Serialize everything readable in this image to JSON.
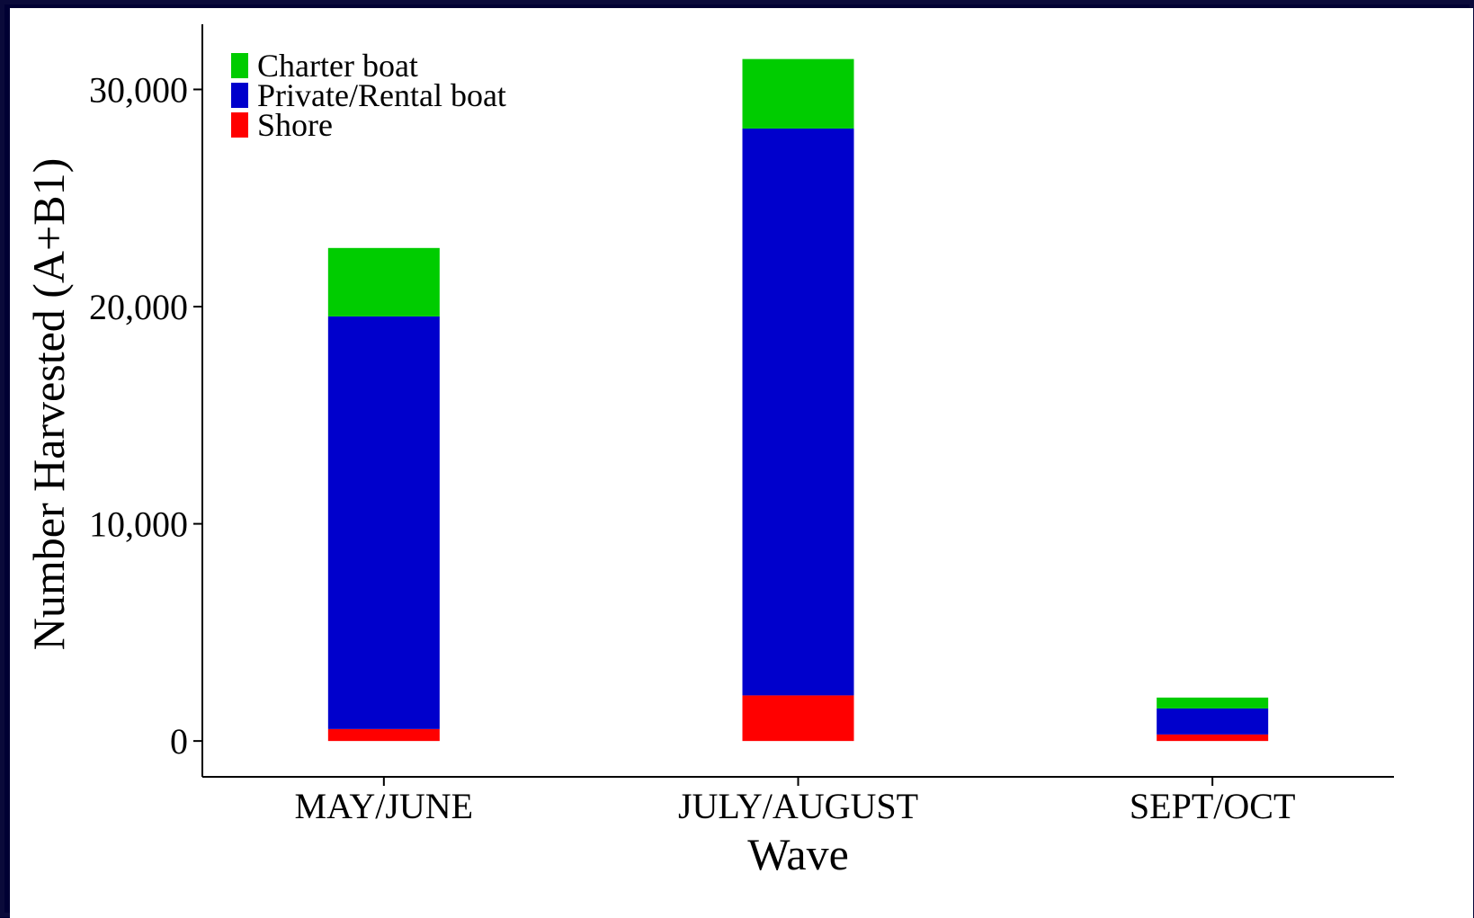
{
  "chart_data": {
    "type": "bar",
    "stacked": true,
    "categories": [
      "MAY/JUNE",
      "JULY/AUGUST",
      "SEPT/OCT"
    ],
    "series": [
      {
        "name": "Shore",
        "color": "#ff0000",
        "values": [
          550,
          2100,
          300
        ]
      },
      {
        "name": "Private/Rental boat",
        "color": "#0000cc",
        "values": [
          19000,
          26100,
          1200
        ]
      },
      {
        "name": "Charter boat",
        "color": "#00cc00",
        "values": [
          3150,
          3200,
          500
        ]
      }
    ],
    "legend_order": [
      "Charter boat",
      "Private/Rental boat",
      "Shore"
    ],
    "xlabel": "Wave",
    "ylabel": "Number Harvested (A+B1)",
    "ylim": [
      -1650,
      33000
    ],
    "yticks": [
      0,
      10000,
      20000,
      30000
    ],
    "ytick_labels": [
      "0",
      "10,000",
      "20,000",
      "30,000"
    ],
    "grid": false,
    "legend_position": "top-left"
  }
}
